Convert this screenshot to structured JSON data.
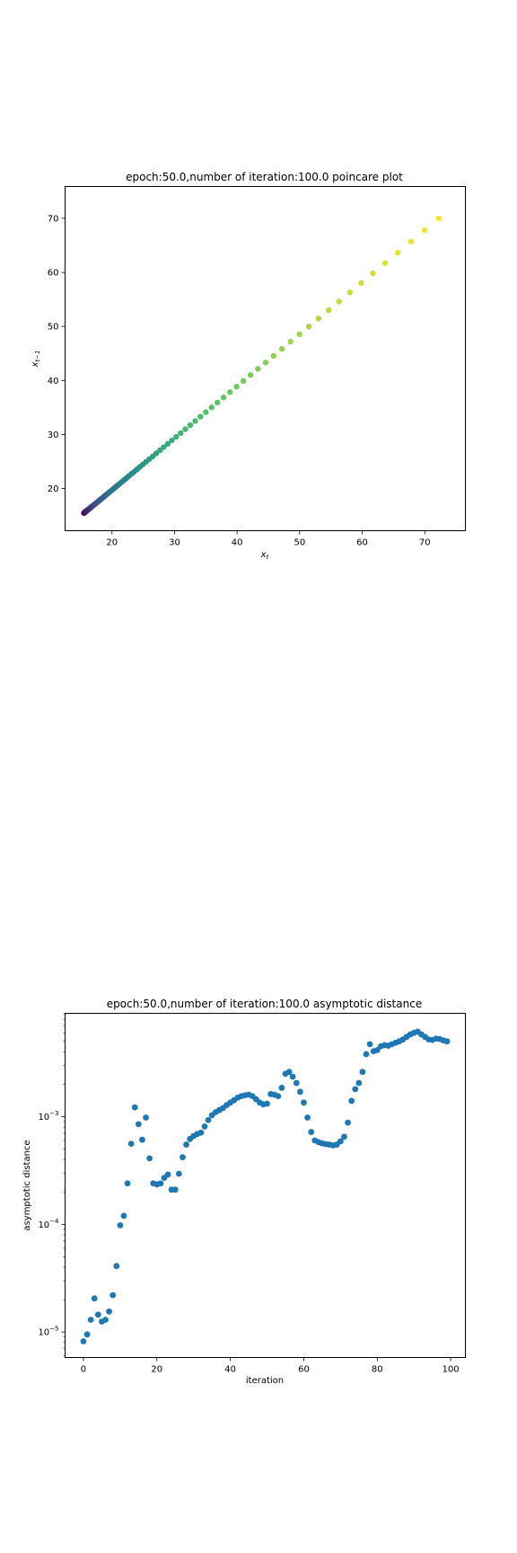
{
  "chart_data": [
    {
      "type": "scatter",
      "title": "epoch:50.0,number of iteration:100.0 poincare plot",
      "xlabel": "x_t",
      "ylabel": "x_{t-1}",
      "xlim": [
        12.5,
        76.5
      ],
      "ylim": [
        12.2,
        75.9
      ],
      "xticks": [
        20,
        30,
        40,
        50,
        60,
        70
      ],
      "yticks": [
        20,
        30,
        40,
        50,
        60,
        70
      ],
      "colormap": "viridis",
      "colormap_stops": [
        "#440154",
        "#3b528b",
        "#21918c",
        "#5ec962",
        "#fde725"
      ],
      "point_color": "#21918c",
      "x": [
        15.52,
        15.57,
        15.63,
        15.68,
        15.75,
        15.81,
        15.88,
        15.96,
        16.04,
        16.12,
        16.21,
        16.31,
        16.41,
        16.51,
        16.62,
        16.74,
        16.87,
        17.0,
        17.14,
        17.29,
        17.44,
        17.6,
        17.78,
        17.96,
        18.14,
        18.34,
        18.55,
        18.77,
        19.0,
        19.24,
        19.49,
        19.75,
        20.03,
        20.31,
        20.61,
        20.93,
        21.26,
        21.6,
        21.96,
        22.34,
        22.73,
        23.13,
        23.56,
        24.0,
        24.46,
        24.94,
        25.44,
        25.96,
        26.51,
        27.07,
        27.66,
        28.27,
        28.91,
        29.57,
        30.26,
        30.98,
        31.73,
        32.5,
        33.31,
        34.14,
        35.01,
        35.92,
        36.86,
        37.84,
        38.86,
        39.91,
        41.01,
        42.15,
        43.33,
        44.56,
        45.84,
        47.17,
        48.55,
        49.98,
        51.47,
        53.02,
        54.63,
        56.3,
        58.04,
        59.84,
        61.72,
        63.67,
        65.69,
        67.8,
        69.99,
        72.26
      ],
      "y": [
        15.47,
        15.52,
        15.57,
        15.63,
        15.68,
        15.75,
        15.81,
        15.88,
        15.96,
        16.04,
        16.12,
        16.21,
        16.31,
        16.41,
        16.51,
        16.62,
        16.74,
        16.87,
        17.0,
        17.14,
        17.29,
        17.44,
        17.6,
        17.78,
        17.96,
        18.14,
        18.34,
        18.55,
        18.77,
        19.0,
        19.24,
        19.49,
        19.75,
        20.03,
        20.31,
        20.61,
        20.93,
        21.26,
        21.6,
        21.96,
        22.34,
        22.73,
        23.13,
        23.56,
        24.0,
        24.46,
        24.94,
        25.44,
        25.96,
        26.51,
        27.07,
        27.66,
        28.27,
        28.91,
        29.57,
        30.26,
        30.98,
        31.73,
        32.5,
        33.31,
        34.14,
        35.01,
        35.92,
        36.86,
        37.84,
        38.86,
        39.91,
        41.01,
        42.15,
        43.33,
        44.56,
        45.84,
        47.17,
        48.55,
        49.98,
        51.47,
        53.02,
        54.63,
        56.3,
        58.04,
        59.84,
        61.72,
        63.67,
        65.69,
        67.8,
        69.99
      ]
    },
    {
      "type": "scatter",
      "title": "epoch:50.0,number of iteration:100.0 asymptotic distance",
      "xlabel": "iteration",
      "ylabel": "asymptotic distance",
      "yscale": "log",
      "xlim": [
        -5,
        104
      ],
      "ylim": [
        5.8e-06,
        0.0091
      ],
      "xticks": [
        0,
        20,
        40,
        60,
        80,
        100
      ],
      "yticks": [
        {
          "value": 1e-05,
          "label": "10",
          "exp": "−5"
        },
        {
          "value": 0.0001,
          "label": "10",
          "exp": "−4"
        },
        {
          "value": 0.001,
          "label": "10",
          "exp": "−3"
        }
      ],
      "point_color": "#1f77b4",
      "x": [
        0,
        1,
        2,
        3,
        4,
        5,
        6,
        7,
        8,
        9,
        10,
        11,
        12,
        13,
        14,
        15,
        16,
        17,
        18,
        19,
        20,
        21,
        22,
        23,
        24,
        25,
        26,
        27,
        28,
        29,
        30,
        31,
        32,
        33,
        34,
        35,
        36,
        37,
        38,
        39,
        40,
        41,
        42,
        43,
        44,
        45,
        46,
        47,
        48,
        49,
        50,
        51,
        52,
        53,
        54,
        55,
        56,
        57,
        58,
        59,
        60,
        61,
        62,
        63,
        64,
        65,
        66,
        67,
        68,
        69,
        70,
        71,
        72,
        73,
        74,
        75,
        76,
        77,
        78,
        79,
        80,
        81,
        82,
        83,
        84,
        85,
        86,
        87,
        88,
        89,
        90,
        91,
        92,
        93,
        94,
        95,
        96,
        97,
        98,
        99
      ],
      "y": [
        8.2e-06,
        9.5e-06,
        1.3e-05,
        2.05e-05,
        1.45e-05,
        1.25e-05,
        1.3e-05,
        1.55e-05,
        2.2e-05,
        4.1e-05,
        9.8e-05,
        0.00012,
        0.00024,
        0.00056,
        0.00122,
        0.00085,
        0.00061,
        0.00098,
        0.00041,
        0.00024,
        0.000235,
        0.00024,
        0.00027,
        0.00029,
        0.00021,
        0.00021,
        0.000295,
        0.00042,
        0.00055,
        0.00062,
        0.00066,
        0.00069,
        0.00071,
        0.00081,
        0.00093,
        0.00103,
        0.0011,
        0.00115,
        0.0012,
        0.00128,
        0.00135,
        0.00142,
        0.0015,
        0.00155,
        0.00158,
        0.0016,
        0.00155,
        0.00145,
        0.00135,
        0.0013,
        0.00132,
        0.00162,
        0.0016,
        0.00155,
        0.00185,
        0.0025,
        0.0026,
        0.00235,
        0.00205,
        0.0017,
        0.00135,
        0.00098,
        0.00072,
        0.0006,
        0.00058,
        0.000565,
        0.000555,
        0.00055,
        0.00054,
        0.00055,
        0.00059,
        0.00065,
        0.00088,
        0.0014,
        0.0018,
        0.00205,
        0.0026,
        0.0038,
        0.0047,
        0.00405,
        0.00415,
        0.0045,
        0.0046,
        0.00455,
        0.0047,
        0.00485,
        0.005,
        0.0052,
        0.0055,
        0.0058,
        0.006,
        0.00615,
        0.0058,
        0.0055,
        0.0052,
        0.00515,
        0.0053,
        0.00525,
        0.0051,
        0.005
      ]
    }
  ]
}
